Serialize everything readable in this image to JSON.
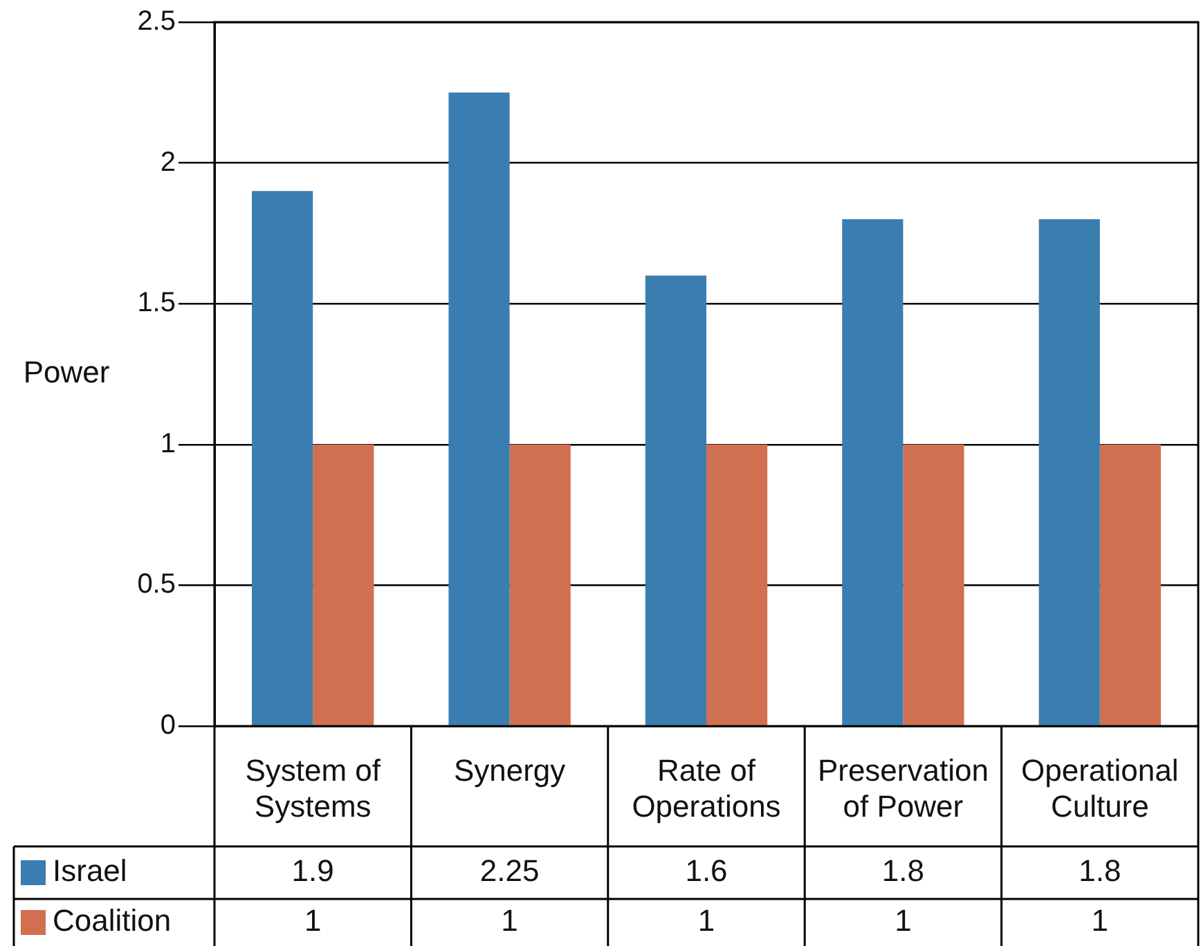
{
  "chart_data": {
    "type": "bar",
    "ylabel": "Power",
    "categories": [
      "System of Systems",
      "Synergy",
      "Rate of Operations",
      "Preservation of Power",
      "Operational Culture"
    ],
    "series": [
      {
        "name": "Israel",
        "color": "#3a7db1",
        "values": [
          1.9,
          2.25,
          1.6,
          1.8,
          1.8
        ]
      },
      {
        "name": "Coalition",
        "color": "#d17050",
        "values": [
          1,
          1,
          1,
          1,
          1
        ]
      }
    ],
    "ylim": [
      0,
      2.5
    ],
    "yticks": [
      0,
      0.5,
      1,
      1.5,
      2,
      2.5
    ],
    "grid": "y",
    "legend": "bottom left",
    "data_labels": true
  }
}
